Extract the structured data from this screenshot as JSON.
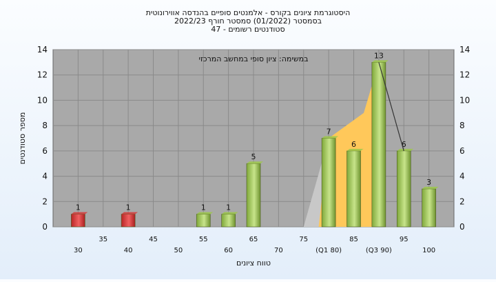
{
  "chart_data": {
    "type": "bar",
    "title_lines": [
      "היסטוגרמת ציונים בקורס - אלמנטים סופיים בהנדסה אווירונוטית",
      "בסמסטר  (01/2022)  סמסטר חורף  2022/23",
      "סטודנטים רשומים - 47"
    ],
    "annotation": "במשימה: ציון סופי במחשב המרכזי",
    "xlabel": "טווח ציונים",
    "ylabel": "מספר סטודנטים",
    "ylim": [
      0,
      14
    ],
    "yticks": [
      0,
      2,
      4,
      6,
      8,
      10,
      12,
      14
    ],
    "grid": true,
    "x_ticks_top_row": [
      "35",
      "45",
      "50",
      "55",
      "60",
      "65",
      "70",
      "75",
      "85",
      "90",
      "95",
      "100"
    ],
    "x_ticks": [
      {
        "x": 30,
        "label": "30"
      },
      {
        "x": 35,
        "label": "35"
      },
      {
        "x": 40,
        "label": "40"
      },
      {
        "x": 45,
        "label": "45"
      },
      {
        "x": 50,
        "label": "50"
      },
      {
        "x": 55,
        "label": "55"
      },
      {
        "x": 60,
        "label": "60"
      },
      {
        "x": 65,
        "label": "65"
      },
      {
        "x": 70,
        "label": "70"
      },
      {
        "x": 75,
        "label": "75"
      },
      {
        "x": 80,
        "label": "(Q1 80)"
      },
      {
        "x": 85,
        "label": "85"
      },
      {
        "x": 90,
        "label": "(Q3 90)"
      },
      {
        "x": 95,
        "label": "95"
      },
      {
        "x": 100,
        "label": "100"
      }
    ],
    "bars": [
      {
        "x": 30,
        "value": 1,
        "color": "#d63a3a"
      },
      {
        "x": 40,
        "value": 1,
        "color": "#d63a3a"
      },
      {
        "x": 55,
        "value": 1,
        "color": "#9cc84a"
      },
      {
        "x": 60,
        "value": 1,
        "color": "#9cc84a"
      },
      {
        "x": 65,
        "value": 5,
        "color": "#9cc84a"
      },
      {
        "x": 80,
        "value": 7,
        "color": "#9cc84a"
      },
      {
        "x": 85,
        "value": 6,
        "color": "#9cc84a"
      },
      {
        "x": 90,
        "value": 13,
        "color": "#9cc84a"
      },
      {
        "x": 95,
        "value": 6,
        "color": "#9cc84a"
      },
      {
        "x": 100,
        "value": 3,
        "color": "#9cc84a"
      }
    ],
    "area_series": {
      "color": "#ffc85a",
      "points": [
        {
          "x": 78,
          "y": 0
        },
        {
          "x": 80,
          "y": 7
        },
        {
          "x": 87,
          "y": 9
        },
        {
          "x": 90,
          "y": 13
        },
        {
          "x": 90,
          "y": 0
        }
      ]
    },
    "grey_series": {
      "color": "#c8c8c8",
      "points": [
        {
          "x": 75,
          "y": 0
        },
        {
          "x": 80,
          "y": 7
        },
        {
          "x": 80,
          "y": 0
        }
      ]
    },
    "line_series": {
      "color": "#333333",
      "points": [
        {
          "x": 90,
          "y": 13
        },
        {
          "x": 95,
          "y": 6
        }
      ]
    },
    "colors": {
      "failing": "#d63a3a",
      "passing": "#9cc84a",
      "plot_bg": "#a9a9a9"
    }
  }
}
